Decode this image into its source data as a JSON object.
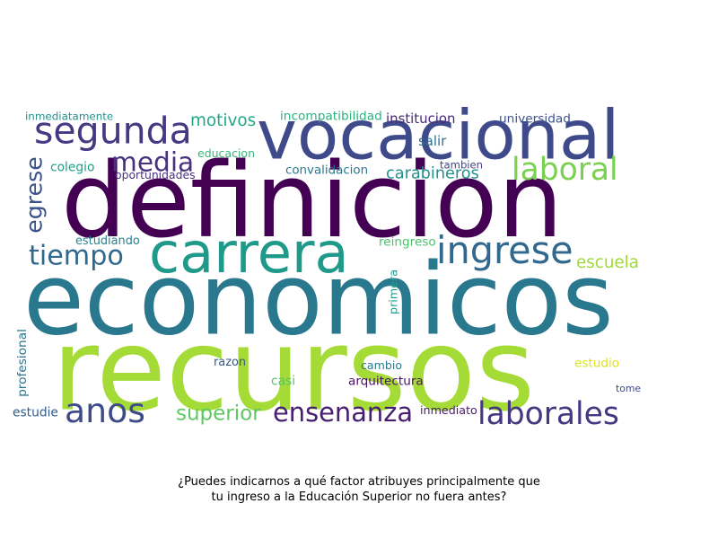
{
  "caption": {
    "line1": "¿Puedes indicarnos a qué factor atribuyes principalmente que",
    "line2": "tu ingreso a la Educación Superior no fuera antes?"
  },
  "words": [
    {
      "text": "definicion",
      "color": "#440154"
    },
    {
      "text": "economicos",
      "color": "#2a788e"
    },
    {
      "text": "recursos",
      "color": "#a5db36"
    },
    {
      "text": "vocacional",
      "color": "#3e4a89"
    },
    {
      "text": "segunda",
      "color": "#443983"
    },
    {
      "text": "carrera",
      "color": "#1f9a8a"
    },
    {
      "text": "ingrese",
      "color": "#31688e"
    },
    {
      "text": "media",
      "color": "#46327e"
    },
    {
      "text": "laboral",
      "color": "#7ad151"
    },
    {
      "text": "tiempo",
      "color": "#31688e"
    },
    {
      "text": "egrese",
      "color": "#3b528b"
    },
    {
      "text": "anos",
      "color": "#3e4a89"
    },
    {
      "text": "ensenanza",
      "color": "#481f70"
    },
    {
      "text": "laborales",
      "color": "#453781"
    },
    {
      "text": "superior",
      "color": "#5ec962"
    },
    {
      "text": "carabineros",
      "color": "#21918c"
    },
    {
      "text": "escuela",
      "color": "#9fda3a"
    },
    {
      "text": "motivos",
      "color": "#22a884"
    },
    {
      "text": "incompatibilidad",
      "color": "#2db27d"
    },
    {
      "text": "institucion",
      "color": "#482878"
    },
    {
      "text": "universidad",
      "color": "#3b528b"
    },
    {
      "text": "inmediatamente",
      "color": "#21918c"
    },
    {
      "text": "salir",
      "color": "#2c728e"
    },
    {
      "text": "educacion",
      "color": "#35b779"
    },
    {
      "text": "colegio",
      "color": "#1fa088"
    },
    {
      "text": "oportunidades",
      "color": "#46327e"
    },
    {
      "text": "convalidacion",
      "color": "#2a788e"
    },
    {
      "text": "tambien",
      "color": "#414487"
    },
    {
      "text": "estudiando",
      "color": "#26828e"
    },
    {
      "text": "reingreso",
      "color": "#4ac16d"
    },
    {
      "text": "primera",
      "color": "#1f9e89"
    },
    {
      "text": "profesional",
      "color": "#2c728e"
    },
    {
      "text": "razon",
      "color": "#38598c"
    },
    {
      "text": "cambio",
      "color": "#2a788e"
    },
    {
      "text": "estudio",
      "color": "#dde318"
    },
    {
      "text": "casi",
      "color": "#54c568"
    },
    {
      "text": "arquitectura",
      "color": "#471063"
    },
    {
      "text": "tome",
      "color": "#3e4a89"
    },
    {
      "text": "estudie",
      "color": "#35608d"
    },
    {
      "text": "inmediato",
      "color": "#481b6d"
    }
  ]
}
